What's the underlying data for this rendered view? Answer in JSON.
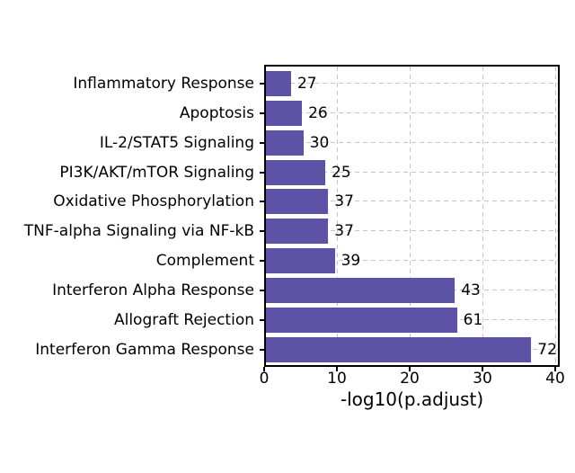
{
  "figure": {
    "background_color": "#ffffff",
    "axis_color": "#000000",
    "grid_color": "#c6c6c6",
    "text_color": "#000000"
  },
  "chart_data": {
    "type": "bar",
    "orientation": "horizontal",
    "title": "",
    "xlabel": "-log10(p.adjust)",
    "ylabel": "",
    "xlim": [
      0,
      40
    ],
    "xticks": [
      0,
      10,
      20,
      30,
      40
    ],
    "grid": "dashed gridlines on both axes, drawn behind bars",
    "legend": "none",
    "bar_color": "#5d53a6",
    "categories": [
      "Inflammatory Response",
      "Apoptosis",
      "IL-2/STAT5 Signaling",
      "PI3K/AKT/mTOR Signaling",
      "Oxidative Phosphorylation",
      "TNF-alpha Signaling via NF-kB",
      "Complement",
      "Interferon Alpha Response",
      "Allograft Rejection",
      "Interferon Gamma Response"
    ],
    "values": [
      3.7,
      5.2,
      5.4,
      8.4,
      8.8,
      8.8,
      9.7,
      26.2,
      26.5,
      36.7
    ],
    "bar_labels": [
      "27",
      "26",
      "30",
      "25",
      "37",
      "37",
      "39",
      "43",
      "61",
      "72"
    ]
  }
}
